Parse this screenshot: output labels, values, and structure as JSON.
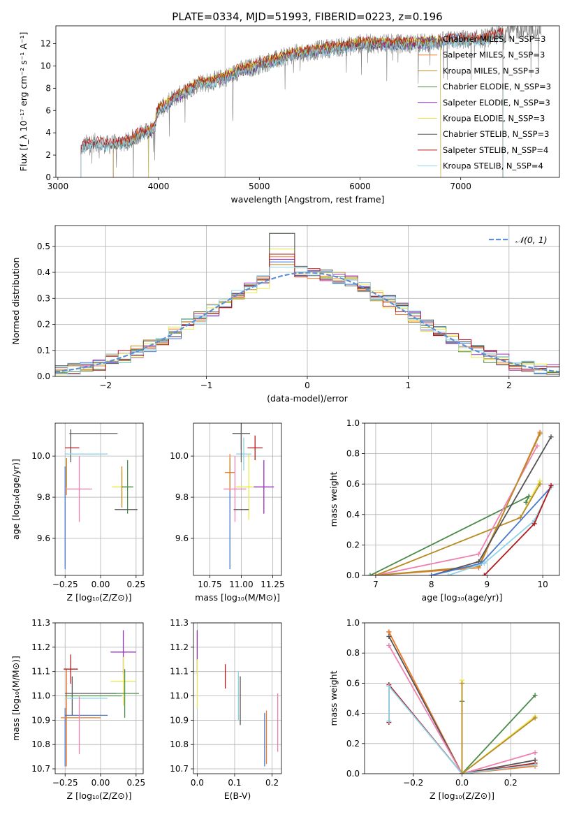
{
  "figure_title": "PLATE=0334, MJD=51993, FIBERID=0223, z=0.196",
  "colors": [
    "#4878cf",
    "#f07a2e",
    "#b88a2a",
    "#4a8a4a",
    "#9933bb",
    "#e8e84a",
    "#555555",
    "#b31b1b",
    "#8fd3e8",
    "#f080b0",
    "#6a8f6a"
  ],
  "chart_data": [
    {
      "id": "spectrum",
      "type": "line",
      "xlabel": "wavelength [Angstrom, rest frame]",
      "ylabel": "Flux [f_λ 10⁻¹⁷ erg cm⁻² s⁻¹ A⁻¹]",
      "xlim": [
        2980,
        7980
      ],
      "ylim": [
        0,
        13.6
      ],
      "xticks": [
        3000,
        4000,
        5000,
        6000,
        7000
      ],
      "yticks": [
        0,
        2,
        4,
        6,
        8,
        10,
        12
      ],
      "grid": false,
      "legend_position": "top-right",
      "observed": {
        "color": "#808080",
        "x": [
          3230,
          3300,
          3400,
          3500,
          3600,
          3700,
          3800,
          3900,
          3950,
          4000,
          4050,
          4150,
          4300,
          4400,
          4500,
          4700,
          4800,
          4900,
          5000,
          5100,
          5200,
          5300,
          5500,
          5700,
          5900,
          6000,
          6200,
          6500,
          6700,
          6800,
          7000,
          7100,
          7300,
          7500,
          7800
        ],
        "y": [
          2.6,
          3.1,
          3.1,
          2.9,
          3.1,
          3.2,
          3.9,
          4.1,
          4.4,
          6.2,
          6.3,
          7.1,
          7.9,
          8.5,
          8.5,
          9.1,
          9.6,
          9.8,
          10.1,
          10.4,
          10.6,
          11.0,
          11.3,
          11.6,
          11.8,
          12.0,
          12.0,
          12.0,
          12.1,
          12.2,
          12.4,
          12.3,
          12.6,
          13.2,
          13.4
        ]
      },
      "series": [
        {
          "name": "Chabrier MILES, N_SSP=3",
          "color": "#4878cf",
          "xmin": 3550,
          "xmax": 7420,
          "offset": 0.0
        },
        {
          "name": "Salpeter MILES, N_SSP=3",
          "color": "#f07a2e",
          "xmin": 3550,
          "xmax": 7420,
          "offset": 0.05
        },
        {
          "name": "Kroupa MILES, N_SSP=3",
          "color": "#b88a2a",
          "xmin": 3550,
          "xmax": 7420,
          "offset": -0.05
        },
        {
          "name": "Chabrier ELODIE, N_SSP=3",
          "color": "#4a8a4a",
          "xmin": 3900,
          "xmax": 6800,
          "offset": 0.1
        },
        {
          "name": "Salpeter ELODIE, N_SSP=3",
          "color": "#9933bb",
          "xmin": 3900,
          "xmax": 6800,
          "offset": -0.1
        },
        {
          "name": "Kroupa ELODIE, N_SSP=3",
          "color": "#e8e84a",
          "xmin": 3900,
          "xmax": 6800,
          "offset": 0.15
        },
        {
          "name": "Chabrier STELIB, N_SSP=3",
          "color": "#555555",
          "xmin": 3230,
          "xmax": 7420,
          "offset": -0.15
        },
        {
          "name": "Salpeter STELIB, N_SSP=4",
          "color": "#b31b1b",
          "xmin": 3230,
          "xmax": 7420,
          "offset": 0.2
        },
        {
          "name": "Kroupa STELIB, N_SSP=4",
          "color": "#8fd3e8",
          "xmin": 3230,
          "xmax": 7420,
          "offset": -0.2
        }
      ]
    },
    {
      "id": "residuals",
      "type": "line",
      "xlabel": "(data-model)/error",
      "ylabel": "Normed distribution",
      "xlim": [
        -2.5,
        2.5
      ],
      "ylim": [
        0,
        0.58
      ],
      "xticks": [
        -2,
        -1,
        0,
        1,
        2
      ],
      "yticks": [
        0.0,
        0.1,
        0.2,
        0.3,
        0.4,
        0.5
      ],
      "grid": true,
      "legend_position": "top-right",
      "normal_curve": {
        "name": "𝒩(0, 1)",
        "color": "#5b8fd6"
      },
      "bin_width": 0.125,
      "histograms": [
        {
          "color": "#4878cf",
          "peak": 0.44
        },
        {
          "color": "#f07a2e",
          "peak": 0.46
        },
        {
          "color": "#b88a2a",
          "peak": 0.43
        },
        {
          "color": "#4a8a4a",
          "peak": 0.55
        },
        {
          "color": "#9933bb",
          "peak": 0.45
        },
        {
          "color": "#e8e84a",
          "peak": 0.49
        },
        {
          "color": "#555555",
          "peak": 0.55
        },
        {
          "color": "#b31b1b",
          "peak": 0.47
        },
        {
          "color": "#8fd3e8",
          "peak": 0.42
        }
      ]
    },
    {
      "id": "age_vs_Z",
      "type": "scatter",
      "xlabel": "Z [log₁₀(Z/Z⊙)]",
      "ylabel": "age  [log₁₀(age/yr)]",
      "xlim": [
        -0.32,
        0.3
      ],
      "ylim": [
        9.42,
        10.16
      ],
      "xticks": [
        -0.25,
        0.0,
        0.25
      ],
      "yticks": [
        9.6,
        9.8,
        10.0
      ],
      "grid": true,
      "points": [
        {
          "color": "#4878cf",
          "x": -0.25,
          "xerr": 0.0,
          "y": 9.7,
          "yerr": 0.25
        },
        {
          "color": "#f07a2e",
          "x": -0.24,
          "xerr": 0.0,
          "y": 9.9,
          "yerr": 0.09
        },
        {
          "color": "#b88a2a",
          "x": -0.24,
          "xerr": 0.0,
          "y": 9.92,
          "yerr": 0.07
        },
        {
          "color": "#555555",
          "x": -0.21,
          "xerr": 0.0,
          "y": 10.05,
          "yerr": 0.08
        },
        {
          "color": "#b31b1b",
          "x": -0.2,
          "xerr": 0.05,
          "y": 10.04,
          "yerr": 0.0
        },
        {
          "color": "#666666",
          "x": -0.05,
          "xerr": 0.17,
          "y": 10.11,
          "yerr": 0.0
        },
        {
          "color": "#8fd3e8",
          "x": -0.1,
          "xerr": 0.15,
          "y": 10.01,
          "yerr": 0.0
        },
        {
          "color": "#f080b0",
          "x": -0.15,
          "xerr": 0.09,
          "y": 9.84,
          "yerr": 0.16
        },
        {
          "color": "#e8e84a",
          "x": 0.15,
          "xerr": 0.07,
          "y": 9.85,
          "yerr": 0.08
        },
        {
          "color": "#b88a2a",
          "x": 0.15,
          "xerr": 0.0,
          "y": 9.85,
          "yerr": 0.1
        },
        {
          "color": "#4a8a4a",
          "x": 0.19,
          "xerr": 0.04,
          "y": 9.85,
          "yerr": 0.13
        },
        {
          "color": "#555555",
          "x": 0.18,
          "xerr": 0.08,
          "y": 9.74,
          "yerr": 0.0
        }
      ]
    },
    {
      "id": "age_vs_mass",
      "type": "scatter",
      "xlabel": "mass [log₁₀(M/M⊙)]",
      "ylabel": "",
      "xlim": [
        10.62,
        11.32
      ],
      "ylim": [
        9.42,
        10.16
      ],
      "xticks": [
        10.75,
        11.0,
        11.25
      ],
      "yticks": [
        9.6,
        9.8,
        10.0
      ],
      "grid": true,
      "points": [
        {
          "color": "#4878cf",
          "x": 10.91,
          "xerr": 0.0,
          "y": 9.7,
          "yerr": 0.25
        },
        {
          "color": "#f07a2e",
          "x": 10.91,
          "xerr": 0.04,
          "y": 9.92,
          "yerr": 0.09
        },
        {
          "color": "#b88a2a",
          "x": 10.91,
          "xerr": 0.0,
          "y": 9.92,
          "yerr": 0.07
        },
        {
          "color": "#555555",
          "x": 11.0,
          "xerr": 0.07,
          "y": 10.11,
          "yerr": 0.08
        },
        {
          "color": "#b31b1b",
          "x": 11.11,
          "xerr": 0.06,
          "y": 10.04,
          "yerr": 0.06
        },
        {
          "color": "#8fd3e8",
          "x": 11.02,
          "xerr": 0.06,
          "y": 10.01,
          "yerr": 0.08
        },
        {
          "color": "#f080b0",
          "x": 10.95,
          "xerr": 0.09,
          "y": 9.84,
          "yerr": 0.16
        },
        {
          "color": "#e8e84a",
          "x": 11.06,
          "xerr": 0.1,
          "y": 9.85,
          "yerr": 0.16
        },
        {
          "color": "#9933bb",
          "x": 11.18,
          "xerr": 0.08,
          "y": 9.85,
          "yerr": 0.13
        },
        {
          "color": "#555555",
          "x": 11.0,
          "xerr": 0.06,
          "y": 9.74,
          "yerr": 0.0
        },
        {
          "color": "#666666",
          "x": 11.0,
          "xerr": 0.0,
          "y": 10.05,
          "yerr": 0.08
        }
      ]
    },
    {
      "id": "weight_vs_age",
      "type": "line",
      "xlabel": "age  [log₁₀(age/yr)]",
      "ylabel": "mass weight",
      "xlim": [
        6.8,
        10.3
      ],
      "ylim": [
        0,
        1.0
      ],
      "xticks": [
        7,
        8,
        9,
        10
      ],
      "yticks": [
        0.0,
        0.2,
        0.4,
        0.6,
        0.8,
        1.0
      ],
      "grid": true,
      "series": [
        {
          "color": "#4a8a4a",
          "x": [
            6.9,
            9.75,
            9.7
          ],
          "y": [
            0.0,
            0.52,
            0.48
          ]
        },
        {
          "color": "#e8e84a",
          "x": [
            7.0,
            9.6,
            9.95
          ],
          "y": [
            0.0,
            0.38,
            0.62
          ]
        },
        {
          "color": "#b88a2a",
          "x": [
            7.0,
            9.6,
            9.95
          ],
          "y": [
            0.0,
            0.38,
            0.6
          ]
        },
        {
          "color": "#f080b0",
          "x": [
            7.0,
            8.85,
            9.9
          ],
          "y": [
            0.0,
            0.14,
            0.85
          ]
        },
        {
          "color": "#f07a2e",
          "x": [
            7.0,
            8.85,
            9.95
          ],
          "y": [
            0.0,
            0.05,
            0.94
          ]
        },
        {
          "color": "#b88a2a",
          "x": [
            7.0,
            8.85,
            9.95
          ],
          "y": [
            0.0,
            0.06,
            0.93
          ]
        },
        {
          "color": "#555555",
          "x": [
            8.0,
            8.85,
            10.15
          ],
          "y": [
            0.0,
            0.09,
            0.91
          ]
        },
        {
          "color": "#4878cf",
          "x": [
            8.0,
            8.9,
            10.15
          ],
          "y": [
            0.0,
            0.08,
            0.58
          ]
        },
        {
          "color": "#8fd3e8",
          "x": [
            8.3,
            8.95,
            9.85,
            10.15
          ],
          "y": [
            0.0,
            0.08,
            0.36,
            0.58
          ]
        },
        {
          "color": "#b31b1b",
          "x": [
            8.95,
            9.85,
            10.15
          ],
          "y": [
            0.0,
            0.34,
            0.59
          ]
        }
      ]
    },
    {
      "id": "mass_vs_Z",
      "type": "scatter",
      "xlabel": "Z [log₁₀(Z/Z⊙)]",
      "ylabel": "mass [log₁₀(M/M⊙)]",
      "xlim": [
        -0.32,
        0.3
      ],
      "ylim": [
        10.68,
        11.3
      ],
      "xticks": [
        -0.25,
        0.0,
        0.25
      ],
      "yticks": [
        10.7,
        10.8,
        10.9,
        11.0,
        11.1,
        11.2,
        11.3
      ],
      "grid": true,
      "points": [
        {
          "color": "#4878cf",
          "x": -0.25,
          "xerr": 0.0,
          "y": 10.83,
          "yerr": 0.12
        },
        {
          "color": "#f07a2e",
          "x": -0.24,
          "xerr": 0.0,
          "y": 10.91,
          "yerr": 0.2
        },
        {
          "color": "#4878cf",
          "x": -0.1,
          "xerr": 0.15,
          "y": 10.92,
          "yerr": 0.0
        },
        {
          "color": "#f07a2e",
          "x": -0.14,
          "xerr": 0.14,
          "y": 10.91,
          "yerr": 0.0
        },
        {
          "color": "#b31b1b",
          "x": -0.21,
          "xerr": 0.05,
          "y": 11.11,
          "yerr": 0.06
        },
        {
          "color": "#555555",
          "x": -0.2,
          "xerr": 0.0,
          "y": 11.0,
          "yerr": 0.08
        },
        {
          "color": "#4a8a4a",
          "x": -0.05,
          "xerr": 0.2,
          "y": 11.0,
          "yerr": 0.0
        },
        {
          "color": "#555555",
          "x": -0.07,
          "xerr": 0.18,
          "y": 11.01,
          "yerr": 0.0
        },
        {
          "color": "#8fd3e8",
          "x": -0.1,
          "xerr": 0.15,
          "y": 10.99,
          "yerr": 0.0
        },
        {
          "color": "#f080b0",
          "x": -0.15,
          "xerr": 0.0,
          "y": 10.88,
          "yerr": 0.12
        },
        {
          "color": "#9933bb",
          "x": 0.16,
          "xerr": 0.09,
          "y": 11.18,
          "yerr": 0.09
        },
        {
          "color": "#e8e84a",
          "x": 0.16,
          "xerr": 0.09,
          "y": 11.06,
          "yerr": 0.1
        },
        {
          "color": "#4a8a4a",
          "x": 0.17,
          "xerr": 0.1,
          "y": 11.01,
          "yerr": 0.1
        },
        {
          "color": "#9933bb",
          "x": 0.15,
          "xerr": 0.0,
          "y": 11.12,
          "yerr": 0.0
        }
      ]
    },
    {
      "id": "mass_vs_ebv",
      "type": "scatter",
      "xlabel": "E(B-V)",
      "ylabel": "",
      "xlim": [
        -0.01,
        0.225
      ],
      "ylim": [
        10.68,
        11.3
      ],
      "xticks": [
        0.0,
        0.1,
        0.2
      ],
      "yticks": [
        10.7,
        10.8,
        10.9,
        11.0,
        11.1,
        11.2,
        11.3
      ],
      "grid": true,
      "points": [
        {
          "color": "#9933bb",
          "x": 0.0,
          "xerr": 0.0,
          "y": 11.18,
          "yerr": 0.09
        },
        {
          "color": "#e8e84a",
          "x": 0.0,
          "xerr": 0.0,
          "y": 11.05,
          "yerr": 0.1
        },
        {
          "color": "#b31b1b",
          "x": 0.075,
          "xerr": 0.0,
          "y": 11.08,
          "yerr": 0.05
        },
        {
          "color": "#555555",
          "x": 0.115,
          "xerr": 0.0,
          "y": 10.98,
          "yerr": 0.1
        },
        {
          "color": "#8fd3e8",
          "x": 0.11,
          "xerr": 0.0,
          "y": 11.0,
          "yerr": 0.1
        },
        {
          "color": "#f07a2e",
          "x": 0.185,
          "xerr": 0.0,
          "y": 10.83,
          "yerr": 0.11
        },
        {
          "color": "#4878cf",
          "x": 0.18,
          "xerr": 0.0,
          "y": 10.82,
          "yerr": 0.11
        },
        {
          "color": "#f080b0",
          "x": 0.215,
          "xerr": 0.0,
          "y": 10.89,
          "yerr": 0.12
        }
      ]
    },
    {
      "id": "weight_vs_Z",
      "type": "line",
      "xlabel": "Z [log₁₀(Z/Z⊙)]",
      "ylabel": "mass weight",
      "xlim": [
        -0.4,
        0.4
      ],
      "ylim": [
        0,
        1.0
      ],
      "xticks": [
        -0.2,
        0.0,
        0.2
      ],
      "yticks": [
        0.0,
        0.2,
        0.4,
        0.6,
        0.8,
        1.0
      ],
      "grid": true,
      "series": [
        {
          "color": "#b88a2a",
          "x": [
            -0.3,
            0.0,
            0.3
          ],
          "y": [
            0.94,
            0.0,
            0.06
          ]
        },
        {
          "color": "#f07a2e",
          "x": [
            -0.3,
            0.0,
            0.3
          ],
          "y": [
            0.94,
            0.0,
            0.05
          ]
        },
        {
          "color": "#555555",
          "x": [
            -0.3,
            0.0,
            0.3
          ],
          "y": [
            0.91,
            0.0,
            0.09
          ]
        },
        {
          "color": "#f080b0",
          "x": [
            -0.3,
            0.0,
            0.3
          ],
          "y": [
            0.85,
            0.0,
            0.14
          ]
        },
        {
          "color": "#b31b1b",
          "x": [
            -0.3,
            -0.3,
            0.0,
            0.3
          ],
          "y": [
            0.34,
            0.59,
            0.0,
            0.07
          ]
        },
        {
          "color": "#8fd3e8",
          "x": [
            -0.3,
            -0.3,
            0.0,
            0.3
          ],
          "y": [
            0.35,
            0.58,
            0.0,
            0.06
          ]
        },
        {
          "color": "#4a8a4a",
          "x": [
            0.0,
            0.0,
            0.3
          ],
          "y": [
            0.48,
            0.0,
            0.52
          ]
        },
        {
          "color": "#e8e84a",
          "x": [
            0.0,
            0.0,
            0.3
          ],
          "y": [
            0.62,
            0.0,
            0.38
          ]
        },
        {
          "color": "#b88a2a",
          "x": [
            0.0,
            0.0,
            0.3
          ],
          "y": [
            0.6,
            0.0,
            0.37
          ]
        }
      ]
    }
  ]
}
